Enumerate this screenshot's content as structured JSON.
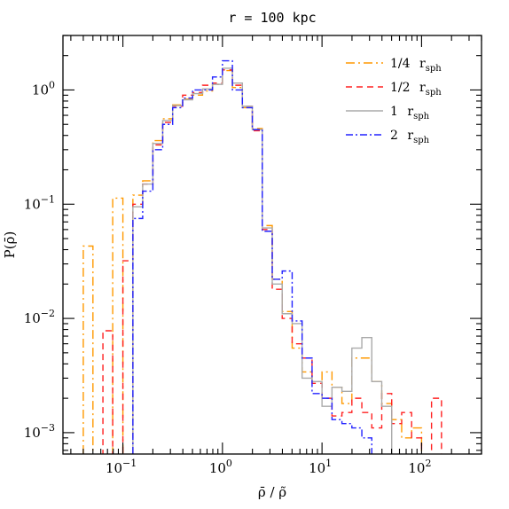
{
  "chart_data": {
    "type": "line",
    "title": "r = 100 kpc",
    "xlabel": "ρ̄ / ρ̃",
    "ylabel": "P(ρ̄)",
    "xscale": "log",
    "yscale": "log",
    "xlim": [
      0.025,
      400
    ],
    "ylim": [
      0.00065,
      3
    ],
    "grid": false,
    "legend_position": "top-right",
    "x_ticks": [
      {
        "value": 0.1,
        "base": "10",
        "exp": "−1"
      },
      {
        "value": 1,
        "base": "10",
        "exp": "0"
      },
      {
        "value": 10,
        "base": "10",
        "exp": "1"
      },
      {
        "value": 100,
        "base": "10",
        "exp": "2"
      }
    ],
    "y_ticks": [
      {
        "value": 0.001,
        "base": "10",
        "exp": "−3"
      },
      {
        "value": 0.01,
        "base": "10",
        "exp": "−2"
      },
      {
        "value": 0.1,
        "base": "10",
        "exp": "−1"
      },
      {
        "value": 1,
        "base": "10",
        "exp": "0"
      }
    ],
    "bin_edges": [
      0.04,
      0.05,
      0.063,
      0.079,
      0.1,
      0.126,
      0.158,
      0.2,
      0.251,
      0.316,
      0.398,
      0.501,
      0.631,
      0.794,
      1.0,
      1.259,
      1.585,
      1.995,
      2.512,
      3.162,
      3.981,
      5.012,
      6.31,
      7.943,
      10.0,
      12.59,
      15.85,
      19.95,
      25.12,
      31.62,
      39.81,
      50.12,
      63.1,
      79.43,
      100.0,
      125.9,
      158.5,
      199.5
    ],
    "series": [
      {
        "name": "1/4",
        "subscript": "sph",
        "prefix": "r",
        "color": "#ff9900",
        "dash": "10,4,2,4",
        "values": [
          0.043,
          null,
          null,
          0.113,
          null,
          0.12,
          0.16,
          0.36,
          0.56,
          0.74,
          0.83,
          0.9,
          0.98,
          1.12,
          1.48,
          1.05,
          0.7,
          0.46,
          0.065,
          0.022,
          0.0115,
          0.0055,
          0.0034,
          0.0028,
          0.0034,
          0.0025,
          0.0018,
          0.0045,
          0.0045,
          0.0028,
          0.0018,
          0.0013,
          0.0009,
          0.0011,
          null,
          null,
          null
        ]
      },
      {
        "name": "1/2",
        "subscript": "sph",
        "prefix": "r",
        "color": "#ff2020",
        "dash": "7,5",
        "values": [
          null,
          null,
          0.0078,
          null,
          0.032,
          0.1,
          0.15,
          0.33,
          0.52,
          0.72,
          0.9,
          0.95,
          1.1,
          1.15,
          1.5,
          1.1,
          0.72,
          0.44,
          0.06,
          0.018,
          0.01,
          0.006,
          0.0045,
          0.0027,
          0.002,
          0.0014,
          0.0015,
          0.002,
          0.0015,
          0.0011,
          0.0022,
          0.0012,
          0.0015,
          0.0009,
          null,
          0.002,
          null
        ]
      },
      {
        "name": "1",
        "subscript": "sph",
        "prefix": "r",
        "color": "#aaaaaa",
        "dash": "",
        "values": [
          null,
          null,
          null,
          null,
          null,
          0.095,
          0.15,
          0.34,
          0.54,
          0.73,
          0.82,
          0.93,
          1.02,
          1.12,
          1.55,
          1.15,
          0.72,
          0.45,
          0.062,
          0.02,
          0.011,
          0.009,
          0.003,
          0.0028,
          0.0017,
          0.0025,
          0.0023,
          0.0055,
          0.0068,
          0.0028,
          0.0017,
          null,
          null,
          null,
          null,
          null,
          null
        ]
      },
      {
        "name": "2",
        "subscript": "sph",
        "prefix": "r",
        "color": "#2222ff",
        "dash": "8,3,2,3",
        "values": [
          null,
          null,
          null,
          null,
          null,
          0.075,
          0.13,
          0.3,
          0.5,
          0.7,
          0.85,
          1.0,
          1.0,
          1.3,
          1.8,
          1.0,
          0.7,
          0.45,
          0.058,
          0.022,
          0.026,
          0.0095,
          0.0045,
          0.0022,
          0.002,
          0.0013,
          0.0012,
          0.0011,
          0.0009,
          null,
          null,
          null,
          null,
          null,
          null,
          null,
          null
        ]
      }
    ]
  }
}
